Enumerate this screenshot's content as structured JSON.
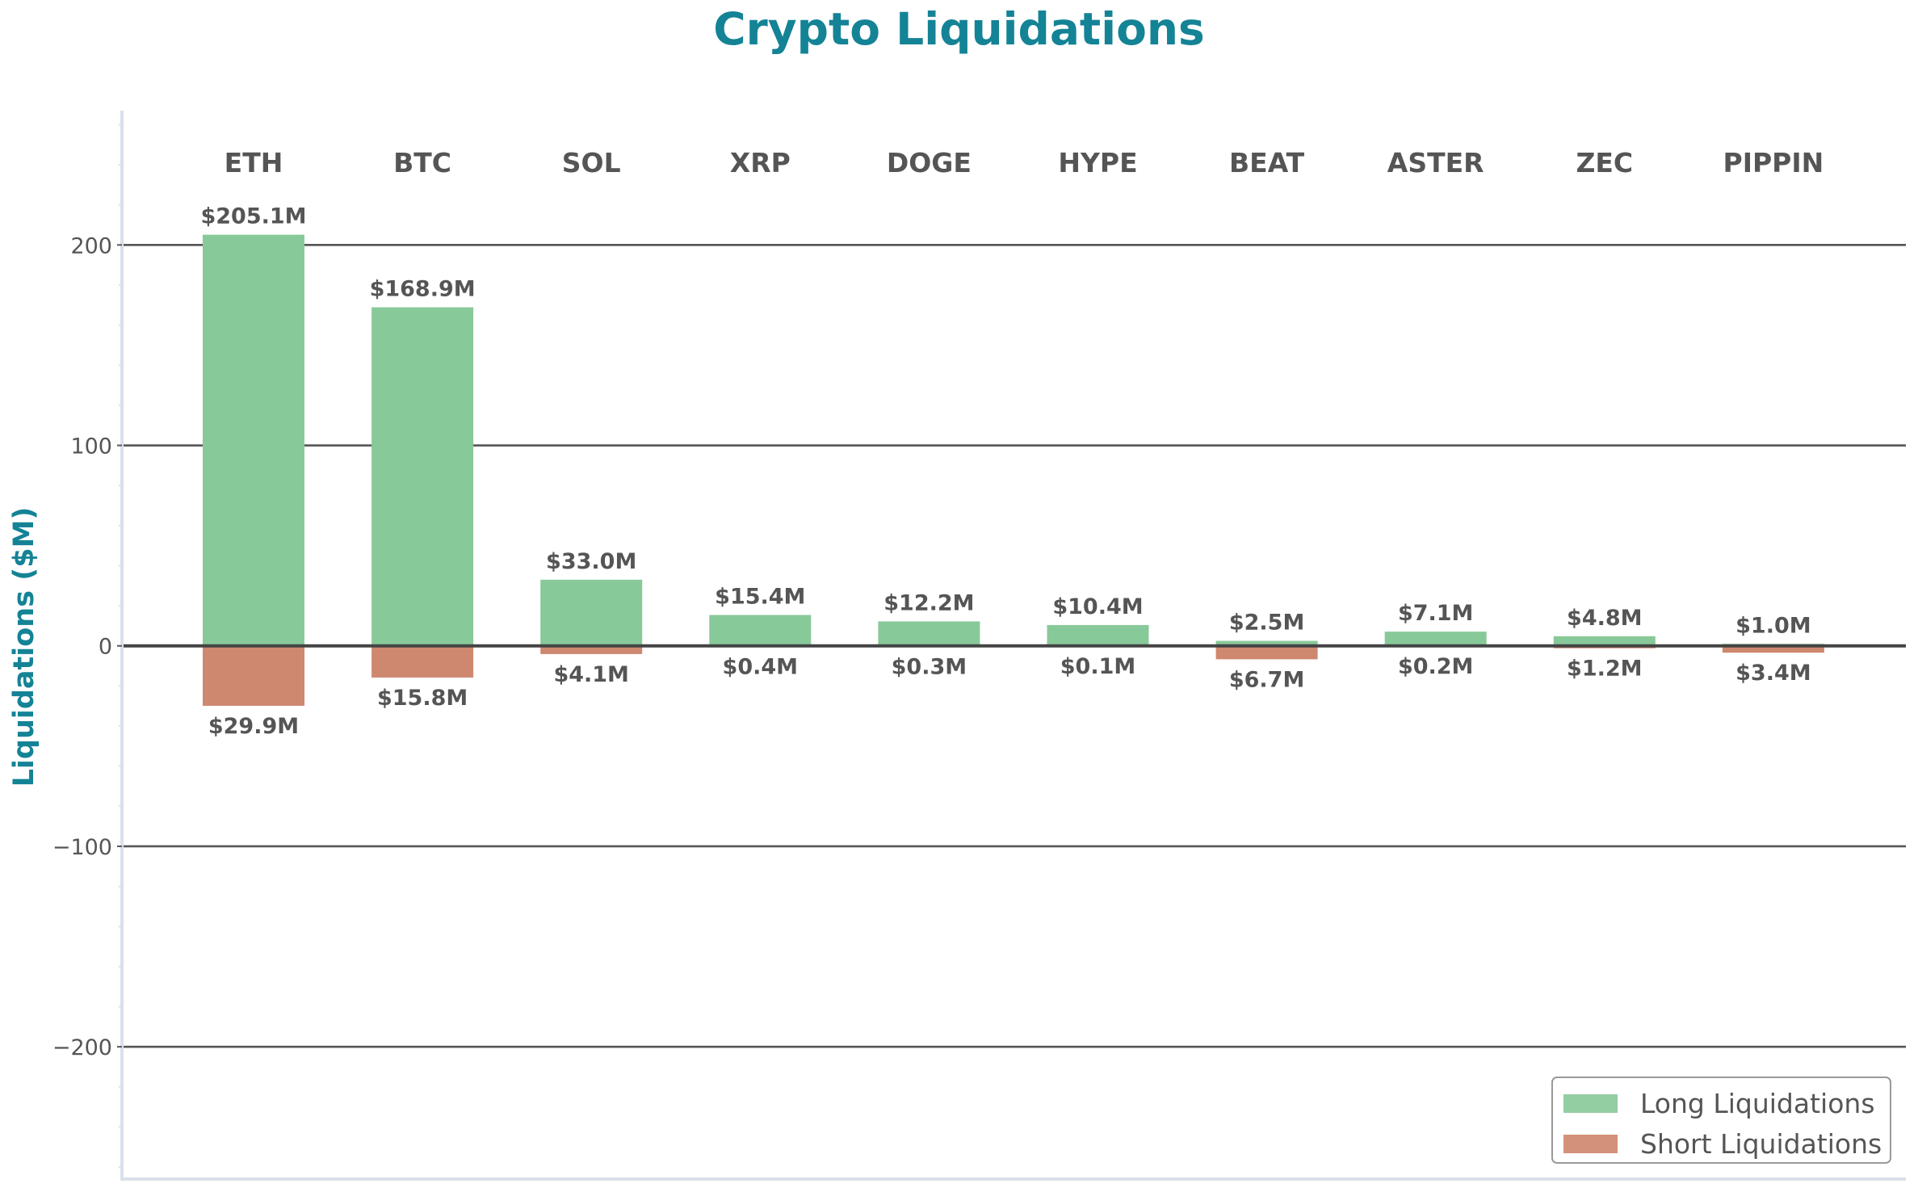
{
  "chart_data": {
    "type": "bar",
    "title": "Crypto Liquidations",
    "xlabel": "",
    "ylabel": "Liquidations ($M)",
    "ylim": [
      -266,
      267
    ],
    "yticks": [
      -200,
      -100,
      0,
      100,
      200
    ],
    "ytick_labels": [
      "−200",
      "−100",
      "0",
      "100",
      "200"
    ],
    "minor_tick_step": 20,
    "grid": true,
    "legend_position": "lower right",
    "categories": [
      "ETH",
      "BTC",
      "SOL",
      "XRP",
      "DOGE",
      "HYPE",
      "BEAT",
      "ASTER",
      "ZEC",
      "PIPPIN"
    ],
    "series": [
      {
        "name": "Long Liquidations",
        "color": "#88C999",
        "values": [
          205.1,
          168.9,
          33.0,
          15.4,
          12.2,
          10.4,
          2.5,
          7.1,
          4.8,
          1.0
        ],
        "labels": [
          "$205.1M",
          "$168.9M",
          "$33.0M",
          "$15.4M",
          "$12.2M",
          "$10.4M",
          "$2.5M",
          "$7.1M",
          "$4.8M",
          "$1.0M"
        ]
      },
      {
        "name": "Short Liquidations",
        "color": "#CE8870",
        "values": [
          -29.9,
          -15.8,
          -4.1,
          -0.4,
          -0.3,
          -0.1,
          -6.7,
          -0.2,
          -1.2,
          -3.4
        ],
        "labels": [
          "$29.9M",
          "$15.8M",
          "$4.1M",
          "$0.4M",
          "$0.3M",
          "$0.1M",
          "$6.7M",
          "$0.2M",
          "$1.2M",
          "$3.4M"
        ]
      }
    ]
  },
  "legend": {
    "items": [
      {
        "label": "Long Liquidations",
        "color": "#93CDA2"
      },
      {
        "label": "Short Liquidations",
        "color": "#D4917A"
      }
    ]
  },
  "colors": {
    "title": "#148396",
    "text": "#555555",
    "grid": "#555555",
    "zero_line": "#444444",
    "spine": "#DAE0EA"
  }
}
